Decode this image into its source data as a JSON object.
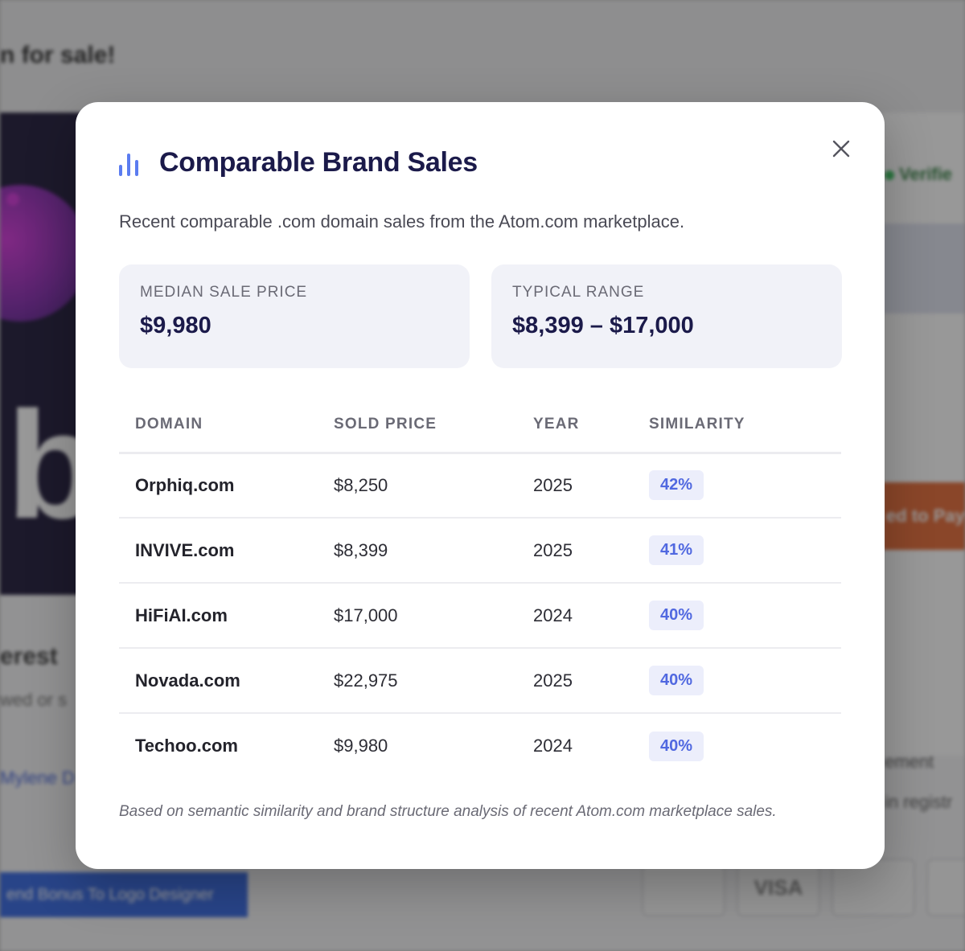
{
  "background": {
    "header_text": "n for sale!",
    "brand_letter": "b",
    "interest_title": "erest",
    "interest_sub": "wed or s",
    "name_link": "Mylene D",
    "bonus_button": "end Bonus To Logo Designer",
    "verified_label": "Verifie",
    "proceed_button": "ed to Pay",
    "right_text_1": "ement",
    "right_text_2": "in registr",
    "payment_cards": [
      "",
      "VISA",
      "",
      ""
    ]
  },
  "modal": {
    "title": "Comparable Brand Sales",
    "subtitle": "Recent comparable .com domain sales from the Atom.com marketplace.",
    "icons": {
      "chart": "bar-chart-icon",
      "close": "close-icon"
    },
    "stats": {
      "median_label": "MEDIAN SALE PRICE",
      "median_value": "$9,980",
      "range_label": "TYPICAL RANGE",
      "range_value": "$8,399 – $17,000"
    },
    "table": {
      "headers": {
        "domain": "DOMAIN",
        "price": "SOLD PRICE",
        "year": "YEAR",
        "similarity": "SIMILARITY"
      },
      "rows": [
        {
          "domain": "Orphiq.com",
          "price": "$8,250",
          "year": "2025",
          "similarity": "42%"
        },
        {
          "domain": "INVIVE.com",
          "price": "$8,399",
          "year": "2025",
          "similarity": "41%"
        },
        {
          "domain": "HiFiAI.com",
          "price": "$17,000",
          "year": "2024",
          "similarity": "40%"
        },
        {
          "domain": "Novada.com",
          "price": "$22,975",
          "year": "2025",
          "similarity": "40%"
        },
        {
          "domain": "Techoo.com",
          "price": "$9,980",
          "year": "2024",
          "similarity": "40%"
        }
      ]
    },
    "footnote": "Based on semantic similarity and brand structure analysis of recent Atom.com marketplace sales."
  },
  "colors": {
    "title": "#1b1a4a",
    "accent": "#5b7cf0",
    "badge_text": "#5068e0",
    "badge_bg": "#eceefb",
    "stat_bg": "#f1f2f8"
  }
}
